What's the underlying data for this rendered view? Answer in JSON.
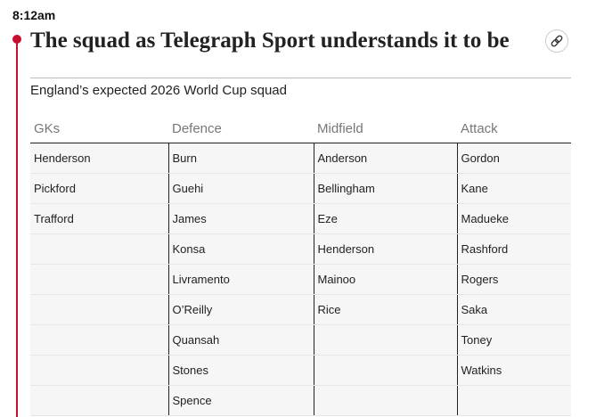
{
  "timestamp": "8:12am",
  "title": "The squad as Telegraph Sport understands it to be",
  "subtitle": "England’s expected 2026 World Cup squad",
  "table": {
    "headers": [
      "GKs",
      "Defence",
      "Midfield",
      "Attack"
    ],
    "rows": [
      [
        "Henderson",
        "Burn",
        "Anderson",
        "Gordon"
      ],
      [
        "Pickford",
        "Guehi",
        "Bellingham",
        "Kane"
      ],
      [
        "Trafford",
        "James",
        "Eze",
        "Madueke"
      ],
      [
        null,
        "Konsa",
        "Henderson",
        "Rashford"
      ],
      [
        null,
        "Livramento",
        "Mainoo",
        "Rogers"
      ],
      [
        null,
        "O’Reilly",
        "Rice",
        "Saka"
      ],
      [
        null,
        "Quansah",
        null,
        "Toney"
      ],
      [
        null,
        "Stones",
        null,
        "Watkins"
      ],
      [
        null,
        "Spence",
        null,
        null
      ]
    ]
  }
}
